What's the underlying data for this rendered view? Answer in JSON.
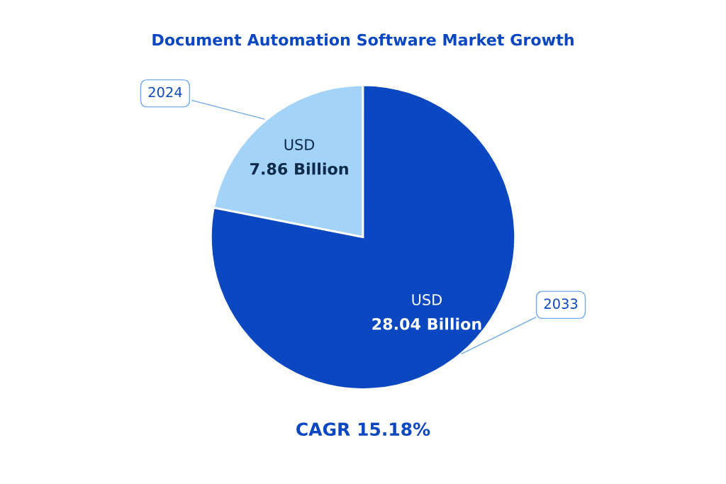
{
  "chart_data": {
    "type": "pie",
    "title": "Document Automation Software Market Growth",
    "categories": [
      "2024",
      "2033"
    ],
    "values": [
      7.86,
      28.04
    ],
    "colors": [
      "#a3d3f8",
      "#0b47c1"
    ],
    "value_labels": [
      "USD\n7.86 Billion",
      "USD\n28.04 Billion"
    ],
    "annotations": [
      "CAGR 15.18%"
    ],
    "legend": false
  }
}
